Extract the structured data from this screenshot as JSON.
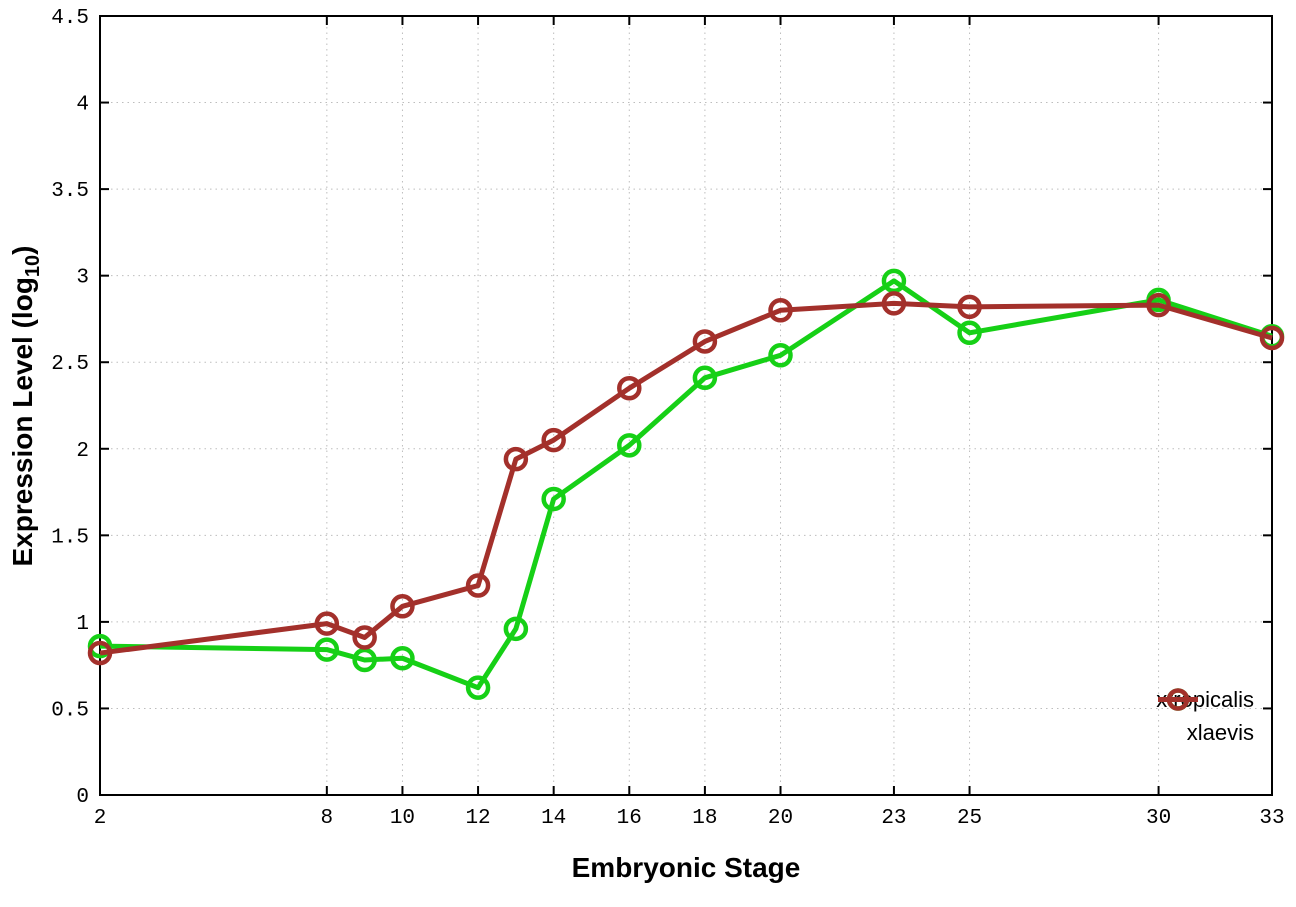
{
  "chart_data": {
    "type": "line",
    "title": "",
    "xlabel": "Embryonic Stage",
    "ylabel": "Expression Level (log10)",
    "ylabel_parts": {
      "main": "Expression Level (log",
      "sub": "10",
      "close": ")"
    },
    "xlim": [
      2,
      33
    ],
    "ylim": [
      0,
      4.5
    ],
    "x_ticks": [
      2,
      8,
      10,
      12,
      14,
      16,
      18,
      20,
      23,
      25,
      30,
      33
    ],
    "y_ticks": [
      0,
      0.5,
      1,
      1.5,
      2,
      2.5,
      3,
      3.5,
      4,
      4.5
    ],
    "grid": true,
    "grid_style": "dotted",
    "legend_position": "inside-bottom-right",
    "series": [
      {
        "name": "xtropicalis",
        "color": "#16d016",
        "marker": "open-circle",
        "x": [
          2,
          8,
          9,
          10,
          12,
          13,
          14,
          16,
          18,
          20,
          23,
          25,
          30,
          33
        ],
        "y": [
          0.86,
          0.84,
          0.78,
          0.79,
          0.62,
          0.96,
          1.71,
          2.02,
          2.41,
          2.54,
          2.97,
          2.67,
          2.86,
          2.65
        ]
      },
      {
        "name": "xlaevis",
        "color": "#a3302b",
        "marker": "open-circle",
        "x": [
          2,
          8,
          9,
          10,
          12,
          13,
          14,
          16,
          18,
          20,
          23,
          25,
          30,
          33
        ],
        "y": [
          0.82,
          0.99,
          0.91,
          1.09,
          1.21,
          1.94,
          2.05,
          2.35,
          2.62,
          2.8,
          2.84,
          2.82,
          2.83,
          2.64
        ]
      }
    ],
    "colors": {
      "border": "#000000",
      "grid": "#bdbdbd",
      "background": "#ffffff",
      "text": "#000000"
    }
  }
}
